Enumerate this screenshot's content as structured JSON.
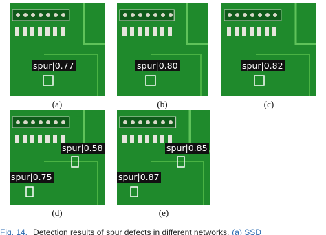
{
  "figure": {
    "panels": [
      {
        "label": "(a)",
        "detections": [
          "spur|0.77"
        ]
      },
      {
        "label": "(b)",
        "detections": [
          "spur|0.80"
        ]
      },
      {
        "label": "(c)",
        "detections": [
          "spur|0.82"
        ]
      },
      {
        "label": "(d)",
        "detections": [
          "spur|0.58",
          "spur|0.75"
        ]
      },
      {
        "label": "(e)",
        "detections": [
          "spur|0.85",
          "spur|0.87"
        ]
      }
    ],
    "caption": {
      "number": "Fig. 14.",
      "text": "Detection results of spur defects in different networks.",
      "link": "(a) SSD"
    }
  }
}
